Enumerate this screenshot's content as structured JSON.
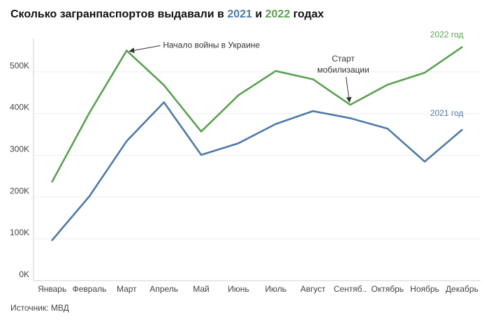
{
  "title": {
    "prefix": "Сколько загранпаспортов выдавали в ",
    "year1": "2021",
    "middle": " и ",
    "year2": "2022",
    "suffix": " годах"
  },
  "source": "Источник: МВД",
  "colors": {
    "y2021": "#4e79a7",
    "y2022": "#59a14f",
    "grid": "#eeeeee",
    "axis": "#d0d0d0"
  },
  "chart_data": {
    "type": "line",
    "categories": [
      "Январь",
      "Февраль",
      "Март",
      "Апрель",
      "Май",
      "Июнь",
      "Июль",
      "Август",
      "Сентяб..",
      "Октябрь",
      "Ноябрь",
      "Декабрь"
    ],
    "series": [
      {
        "name": "2021 год",
        "color": "#4e79a7",
        "values": [
          97000,
          202000,
          334000,
          427000,
          301000,
          329000,
          375000,
          406000,
          389000,
          364000,
          285000,
          361000
        ]
      },
      {
        "name": "2022 год",
        "color": "#59a14f",
        "values": [
          237000,
          402000,
          551000,
          468000,
          357000,
          444000,
          502000,
          482000,
          421000,
          469000,
          498000,
          559000
        ]
      }
    ],
    "ylim": [
      0,
      580000
    ],
    "yticks": [
      0,
      100000,
      200000,
      300000,
      400000,
      500000
    ],
    "ytick_labels": [
      "0K",
      "100K",
      "200K",
      "300K",
      "400K",
      "500K"
    ],
    "grid": true,
    "annotations": [
      {
        "text": "Начало войны в Украине",
        "series": 1,
        "index": 2
      },
      {
        "lines": [
          "Старт",
          "мобилизации"
        ],
        "series": 1,
        "index": 8
      }
    ]
  }
}
